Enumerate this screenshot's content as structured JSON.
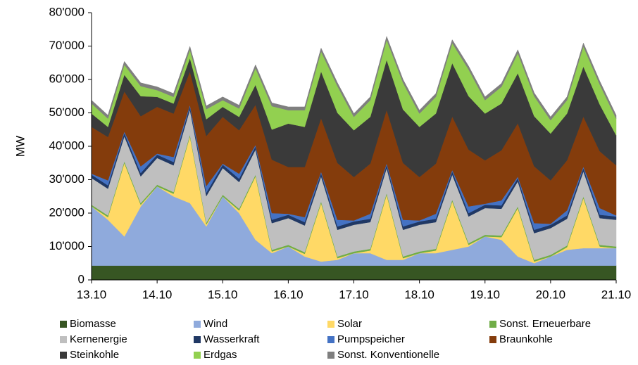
{
  "chart_data": {
    "type": "stacked_area",
    "y_label": "MW",
    "x": [
      0,
      0.25,
      0.5,
      0.75,
      1,
      1.25,
      1.5,
      1.75,
      2,
      2.25,
      2.5,
      2.75,
      3,
      3.25,
      3.5,
      3.75,
      4,
      4.25,
      4.5,
      4.75,
      5,
      5.25,
      5.5,
      5.75,
      6,
      6.25,
      6.5,
      6.75,
      7,
      7.25,
      7.5,
      7.75,
      8
    ],
    "xlim": [
      0,
      8
    ],
    "xticks": [
      {
        "value": 0,
        "label": "13.10"
      },
      {
        "value": 1,
        "label": "14.10"
      },
      {
        "value": 2,
        "label": "15.10"
      },
      {
        "value": 3,
        "label": "16.10"
      },
      {
        "value": 4,
        "label": "17.10"
      },
      {
        "value": 5,
        "label": "18.10"
      },
      {
        "value": 6,
        "label": "19.10"
      },
      {
        "value": 7,
        "label": "20.10"
      },
      {
        "value": 8,
        "label": "21.10"
      }
    ],
    "ylim": [
      0,
      80000
    ],
    "yticks": [
      0,
      {
        "value": 10000,
        "label": "10'000"
      },
      {
        "value": 20000,
        "label": "20'000"
      },
      {
        "value": 30000,
        "label": "30'000"
      },
      {
        "value": 40000,
        "label": "40'000"
      },
      {
        "value": 50000,
        "label": "50'000"
      },
      {
        "value": 60000,
        "label": "60'000"
      },
      {
        "value": 70000,
        "label": "70'000"
      },
      {
        "value": 80000,
        "label": "80'000"
      }
    ],
    "series": [
      {
        "name": "Biomasse",
        "color": "#375623",
        "values": [
          4300,
          4300,
          4300,
          4300,
          4300,
          4300,
          4300,
          4300,
          4300,
          4300,
          4300,
          4300,
          4300,
          4300,
          4300,
          4300,
          4300,
          4300,
          4300,
          4300,
          4300,
          4300,
          4300,
          4300,
          4300,
          4300,
          4300,
          4300,
          4300,
          4300,
          4300,
          4300,
          4300
        ]
      },
      {
        "name": "Wind",
        "color": "#8faadc",
        "values": [
          17700,
          13700,
          8700,
          17700,
          23700,
          20700,
          18700,
          11700,
          20700,
          15700,
          7700,
          3700,
          5700,
          2700,
          1200,
          1700,
          3700,
          3700,
          1700,
          1700,
          3700,
          3700,
          4700,
          5700,
          8700,
          7700,
          2700,
          700,
          2700,
          4700,
          5200,
          5200,
          5200
        ]
      },
      {
        "name": "Solar",
        "color": "#ffd966",
        "values": [
          0,
          800,
          22000,
          500,
          0,
          800,
          20000,
          600,
          0,
          800,
          19000,
          500,
          0,
          800,
          17500,
          500,
          0,
          800,
          19500,
          500,
          0,
          800,
          14500,
          500,
          0,
          800,
          14500,
          500,
          0,
          800,
          15000,
          500,
          0
        ]
      },
      {
        "name": "Sonst. Erneuerbare",
        "color": "#70ad47",
        "values": [
          500,
          500,
          500,
          500,
          500,
          500,
          500,
          500,
          500,
          500,
          500,
          500,
          500,
          500,
          500,
          500,
          500,
          500,
          500,
          500,
          500,
          500,
          500,
          500,
          500,
          500,
          500,
          500,
          500,
          500,
          500,
          500,
          500
        ]
      },
      {
        "name": "Kernenergie",
        "color": "#bfbfbf",
        "values": [
          8000,
          8000,
          7500,
          8000,
          8000,
          8000,
          7500,
          8000,
          8000,
          8000,
          7500,
          8000,
          8000,
          8000,
          7500,
          8000,
          8000,
          8000,
          7500,
          8000,
          8000,
          8000,
          7500,
          8000,
          8000,
          8000,
          7500,
          8000,
          8000,
          8000,
          7500,
          8000,
          8000
        ]
      },
      {
        "name": "Wasserkraft",
        "color": "#203864",
        "values": [
          1000,
          1000,
          1000,
          1000,
          1000,
          1000,
          1000,
          1000,
          1000,
          1000,
          1000,
          1000,
          1000,
          1000,
          1000,
          1000,
          1000,
          1000,
          1000,
          1000,
          1000,
          1000,
          1000,
          1000,
          1000,
          1000,
          1000,
          1000,
          1000,
          1000,
          1000,
          1000,
          1000
        ]
      },
      {
        "name": "Pumpspeicher",
        "color": "#4472c4",
        "values": [
          300,
          1500,
          400,
          2000,
          300,
          1500,
          400,
          2000,
          300,
          1500,
          400,
          2000,
          300,
          1500,
          400,
          2000,
          300,
          1500,
          400,
          2000,
          300,
          1500,
          400,
          2000,
          300,
          1500,
          400,
          2000,
          300,
          1500,
          400,
          2000,
          300
        ]
      },
      {
        "name": "Braunkohle",
        "color": "#843c0c",
        "values": [
          14000,
          13000,
          12000,
          15000,
          14000,
          13000,
          10000,
          15000,
          14000,
          13000,
          12000,
          16000,
          14000,
          15000,
          16000,
          17000,
          13000,
          15000,
          16000,
          17000,
          13000,
          15000,
          16000,
          17000,
          13000,
          15000,
          16000,
          17000,
          13000,
          15000,
          15000,
          17000,
          15000
        ]
      },
      {
        "name": "Steinkohle",
        "color": "#3a3a3a",
        "values": [
          4000,
          3000,
          5000,
          6000,
          3000,
          3000,
          4000,
          5000,
          3000,
          4000,
          6000,
          9000,
          13000,
          12000,
          14000,
          15000,
          14000,
          14000,
          15000,
          16000,
          15000,
          15000,
          16000,
          16000,
          14000,
          14000,
          15000,
          15000,
          14000,
          14000,
          15000,
          14000,
          9000
        ]
      },
      {
        "name": "Erdgas",
        "color": "#92d050",
        "values": [
          3000,
          2500,
          3000,
          3000,
          2000,
          2000,
          2500,
          3000,
          2000,
          2500,
          5000,
          7000,
          4000,
          5000,
          6000,
          8000,
          4000,
          5000,
          6000,
          8000,
          4000,
          5000,
          6000,
          8000,
          4000,
          5000,
          6000,
          6000,
          4000,
          4000,
          6000,
          6000,
          5000
        ]
      },
      {
        "name": "Sonst. Konventionelle",
        "color": "#7f7f7f",
        "values": [
          1000,
          1000,
          1000,
          1000,
          1000,
          1000,
          1000,
          1000,
          1000,
          1000,
          1000,
          1000,
          1000,
          1000,
          1000,
          1000,
          1000,
          1000,
          1000,
          1000,
          1000,
          1000,
          1000,
          1000,
          1000,
          1000,
          1000,
          1000,
          1000,
          1000,
          1000,
          1000,
          1000
        ]
      }
    ]
  }
}
